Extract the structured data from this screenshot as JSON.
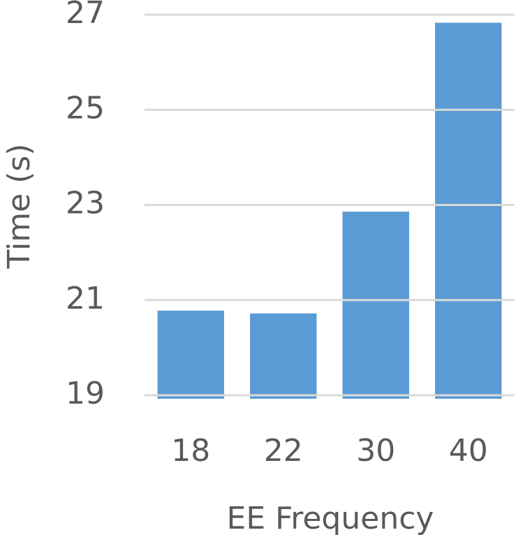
{
  "chart_data": {
    "type": "bar",
    "x_label": "EE Frequency",
    "y_label": "Time (s)",
    "categories": [
      "18",
      "22",
      "30",
      "40"
    ],
    "values": [
      20.78,
      20.72,
      22.86,
      26.83
    ],
    "color": "#5b9bd5",
    "ylim": [
      19,
      27
    ],
    "yticks": [
      19,
      21,
      23,
      25,
      27
    ],
    "grid": true
  }
}
